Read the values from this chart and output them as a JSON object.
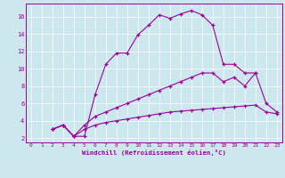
{
  "xlabel": "Windchill (Refroidissement éolien,°C)",
  "background_color": "#cce8ee",
  "line_color": "#990099",
  "grid_color": "#b0d8e0",
  "xlim": [
    -0.5,
    23.5
  ],
  "ylim": [
    1.5,
    17.5
  ],
  "xticks": [
    0,
    1,
    2,
    3,
    4,
    5,
    6,
    7,
    8,
    9,
    10,
    11,
    12,
    13,
    14,
    15,
    16,
    17,
    18,
    19,
    20,
    21,
    22,
    23
  ],
  "yticks": [
    2,
    4,
    6,
    8,
    10,
    12,
    14,
    16
  ],
  "series1_x": [
    2,
    3,
    4,
    5,
    6,
    7,
    8,
    9,
    10,
    11,
    12,
    13,
    14,
    15,
    16,
    17,
    18,
    19,
    20,
    21
  ],
  "series1_y": [
    3.0,
    3.5,
    2.2,
    2.2,
    7.0,
    10.5,
    11.8,
    11.8,
    13.9,
    15.0,
    16.2,
    15.8,
    16.3,
    16.7,
    16.2,
    15.0,
    10.5,
    10.5,
    9.5,
    9.5
  ],
  "series2_x": [
    2,
    3,
    4,
    5,
    6,
    7,
    8,
    9,
    10,
    11,
    12,
    13,
    14,
    15,
    16,
    17,
    18,
    19,
    20,
    21,
    22,
    23
  ],
  "series2_y": [
    3.0,
    3.5,
    2.2,
    3.5,
    4.5,
    5.0,
    5.5,
    6.0,
    6.5,
    7.0,
    7.5,
    8.0,
    8.5,
    9.0,
    9.5,
    9.5,
    8.5,
    9.0,
    8.0,
    9.5,
    6.0,
    5.0
  ],
  "series3_x": [
    2,
    3,
    4,
    5,
    6,
    7,
    8,
    9,
    10,
    11,
    12,
    13,
    14,
    15,
    16,
    17,
    18,
    19,
    20,
    21,
    22,
    23
  ],
  "series3_y": [
    3.0,
    3.5,
    2.2,
    3.0,
    3.5,
    3.8,
    4.0,
    4.2,
    4.4,
    4.6,
    4.8,
    5.0,
    5.1,
    5.2,
    5.3,
    5.4,
    5.5,
    5.6,
    5.7,
    5.8,
    5.0,
    4.8
  ]
}
